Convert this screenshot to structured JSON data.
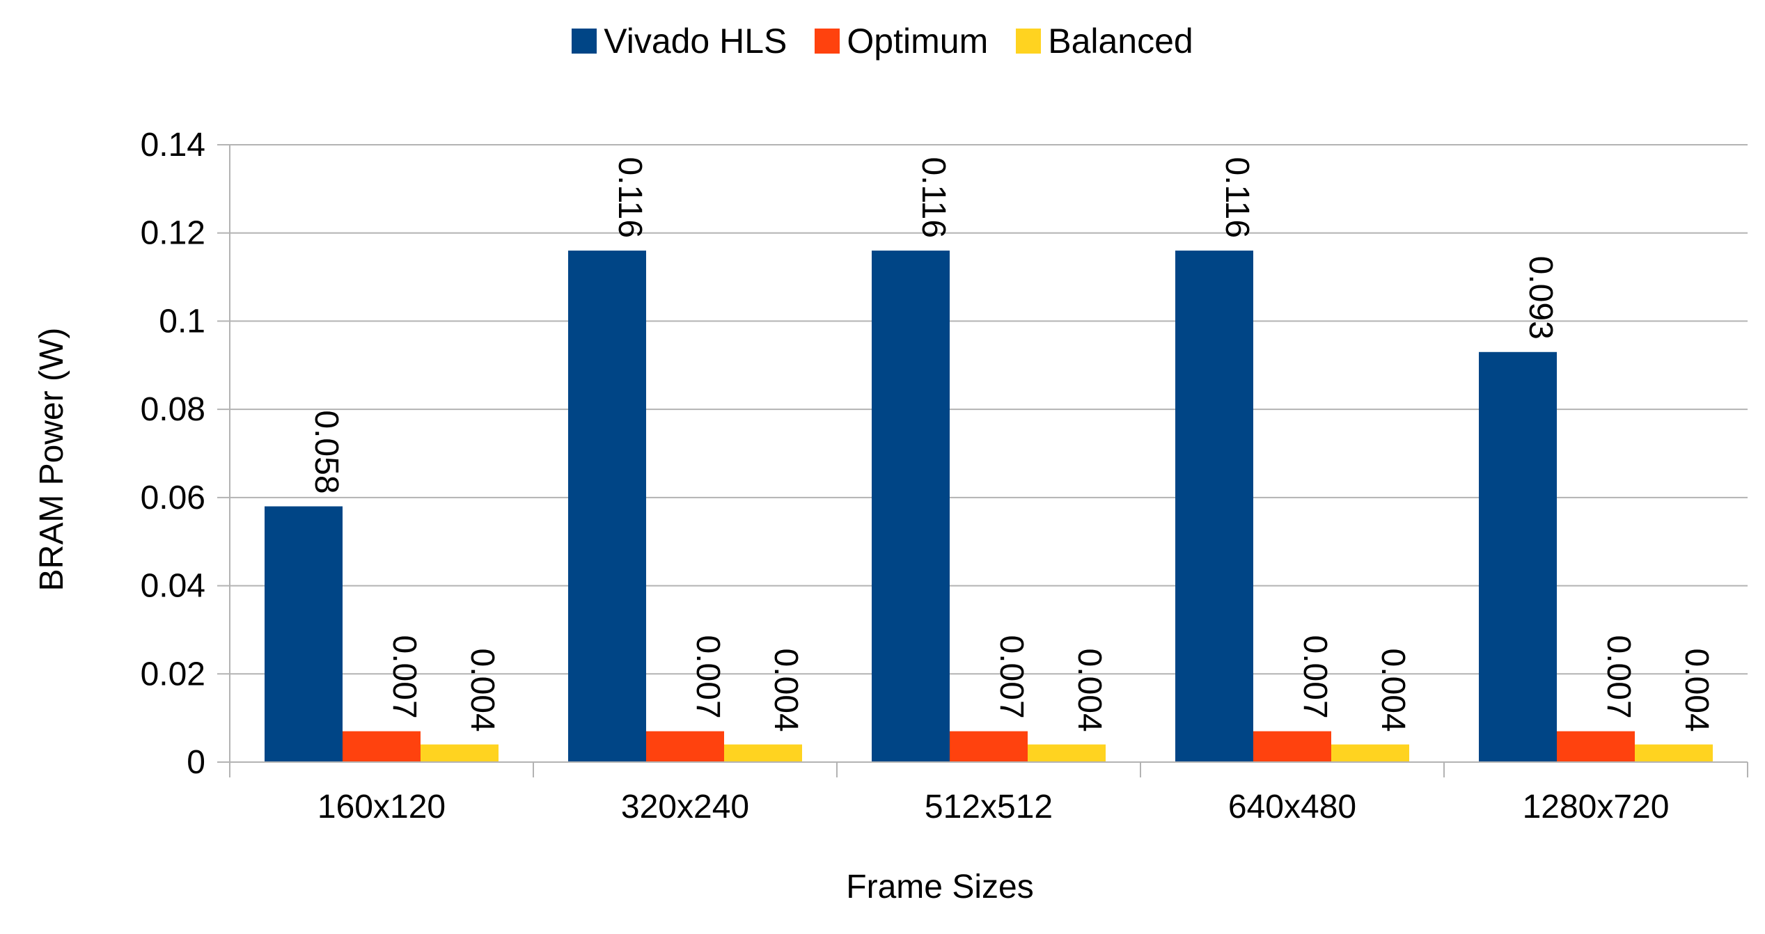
{
  "chart_data": {
    "type": "bar",
    "title": "",
    "xlabel": "Frame Sizes",
    "ylabel": "BRAM Power (W)",
    "ylim": [
      0,
      0.14
    ],
    "yticks": [
      "0",
      "0.02",
      "0.04",
      "0.06",
      "0.08",
      "0.1",
      "0.12",
      "0.14"
    ],
    "ytick_values": [
      0,
      0.02,
      0.04,
      0.06,
      0.08,
      0.1,
      0.12,
      0.14
    ],
    "grid": true,
    "legend_position": "top-center",
    "categories": [
      "160x120",
      "320x240",
      "512x512",
      "640x480",
      "1280x720"
    ],
    "series": [
      {
        "name": "Vivado HLS",
        "color": "#004586",
        "values": [
          0.058,
          0.116,
          0.116,
          0.116,
          0.093
        ],
        "labels": [
          "0.058",
          "0.116",
          "0.116",
          "0.116",
          "0.093"
        ]
      },
      {
        "name": "Optimum",
        "color": "#ff420e",
        "values": [
          0.007,
          0.007,
          0.007,
          0.007,
          0.007
        ],
        "labels": [
          "0.007",
          "0.007",
          "0.007",
          "0.007",
          "0.007"
        ]
      },
      {
        "name": "Balanced",
        "color": "#ffd320",
        "values": [
          0.004,
          0.004,
          0.004,
          0.004,
          0.004
        ],
        "labels": [
          "0.004",
          "0.004",
          "0.004",
          "0.004",
          "0.004"
        ]
      }
    ]
  }
}
